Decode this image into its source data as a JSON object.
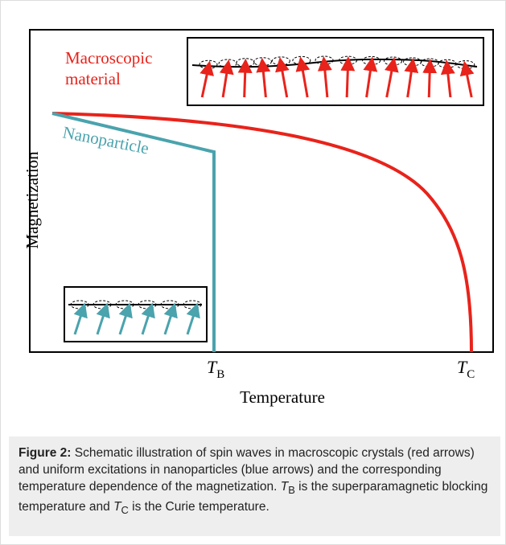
{
  "figure": {
    "labels": {
      "macroscopic": [
        "Macroscopic",
        "material"
      ],
      "nanoparticle": "Nanoparticle"
    },
    "axes": {
      "y_label": "Magnetization",
      "x_label": "Temperature"
    },
    "markers": [
      {
        "symbol": "T",
        "subscript": "B"
      },
      {
        "symbol": "T",
        "subscript": "C"
      }
    ]
  },
  "caption": {
    "label": "Figure 2:",
    "text_1": "Schematic illustration of spin waves in macroscopic crystals (red arrows) and uniform excitations in nanoparticles (blue arrows) and the corresponding temperature dependence of the magnetization.",
    "symbol_1": "T",
    "subscript_1": "B",
    "text_2": "is the superparamagnetic blocking temperature and",
    "symbol_2": "T",
    "subscript_2": "C",
    "text_3": "is the Curie temperature."
  }
}
